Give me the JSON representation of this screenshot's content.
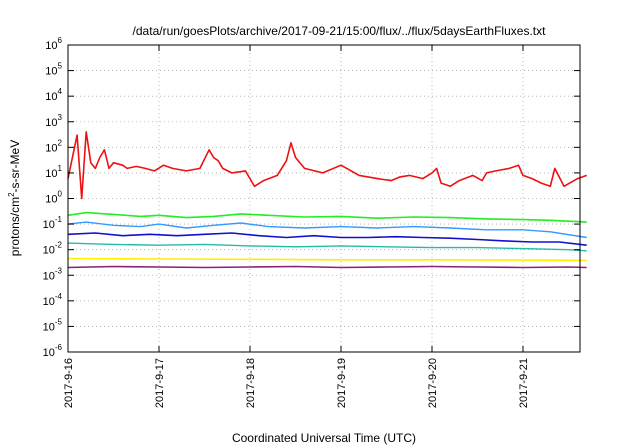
{
  "chart_data": {
    "type": "line",
    "title": "/data/run/goesPlots/archive/2017-09-21/15:00/flux/../flux/5daysEarthFluxes.txt",
    "xlabel": "Coordinated Universal Time (UTC)",
    "ylabel": {
      "base": "protons/cm",
      "sup": "2",
      "rest": "-s-sr-MeV"
    },
    "yscale": "log",
    "ylim": [
      1e-06,
      1000000.0
    ],
    "xlim": [
      "2017-09-16",
      "2017-09-21 17:00"
    ],
    "grid": true,
    "legend": "none",
    "x_ticks": [
      {
        "label": "2017-9-16",
        "day": 0
      },
      {
        "label": "2017-9-17",
        "day": 1
      },
      {
        "label": "2017-9-18",
        "day": 2
      },
      {
        "label": "2017-9-19",
        "day": 3
      },
      {
        "label": "2017-9-20",
        "day": 4
      },
      {
        "label": "2017-9-21",
        "day": 5
      }
    ],
    "y_ticks": [
      {
        "base": "10",
        "exp": "-6",
        "value": 1e-06
      },
      {
        "base": "10",
        "exp": "-5",
        "value": 1e-05
      },
      {
        "base": "10",
        "exp": "-4",
        "value": 0.0001
      },
      {
        "base": "10",
        "exp": "-3",
        "value": 0.001
      },
      {
        "base": "10",
        "exp": "-2",
        "value": 0.01
      },
      {
        "base": "10",
        "exp": "-1",
        "value": 0.1
      },
      {
        "base": "10",
        "exp": "0",
        "value": 1
      },
      {
        "base": "10",
        "exp": "1",
        "value": 10
      },
      {
        "base": "10",
        "exp": "2",
        "value": 100
      },
      {
        "base": "10",
        "exp": "3",
        "value": 1000
      },
      {
        "base": "10",
        "exp": "4",
        "value": 10000
      },
      {
        "base": "10",
        "exp": "5",
        "value": 100000
      },
      {
        "base": "10",
        "exp": "6",
        "value": 1000000
      }
    ],
    "series": [
      {
        "color": "#ee1111",
        "width": 1.6,
        "x": [
          0,
          0.1,
          0.15,
          0.2,
          0.25,
          0.3,
          0.35,
          0.4,
          0.45,
          0.5,
          0.6,
          0.65,
          0.75,
          0.85,
          0.95,
          1.05,
          1.15,
          1.3,
          1.45,
          1.55,
          1.6,
          1.65,
          1.7,
          1.8,
          1.95,
          2.05,
          2.15,
          2.3,
          2.4,
          2.45,
          2.5,
          2.6,
          2.8,
          3.0,
          3.2,
          3.4,
          3.55,
          3.65,
          3.75,
          3.9,
          4.0,
          4.05,
          4.1,
          4.2,
          4.3,
          4.45,
          4.55,
          4.6,
          4.7,
          4.85,
          4.95,
          5.0,
          5.1,
          5.2,
          5.3,
          5.35,
          5.45,
          5.6,
          5.7
        ],
        "y": [
          6,
          300,
          1,
          400,
          25,
          15,
          40,
          80,
          15,
          25,
          20,
          15,
          18,
          15,
          12,
          20,
          15,
          12,
          15,
          80,
          40,
          30,
          15,
          10,
          12,
          3,
          5,
          8,
          30,
          150,
          40,
          15,
          10,
          20,
          8,
          6,
          5,
          7,
          8,
          6,
          10,
          15,
          4,
          3,
          5,
          8,
          5,
          10,
          12,
          15,
          20,
          8,
          6,
          4,
          3,
          15,
          3,
          6,
          8
        ]
      },
      {
        "color": "#22ee22",
        "width": 1.6,
        "x": [
          0,
          0.2,
          0.5,
          0.8,
          1.0,
          1.3,
          1.6,
          1.9,
          2.2,
          2.6,
          3.0,
          3.4,
          3.8,
          4.2,
          4.6,
          5.0,
          5.3,
          5.7
        ],
        "y": [
          0.22,
          0.28,
          0.24,
          0.2,
          0.22,
          0.18,
          0.2,
          0.25,
          0.22,
          0.19,
          0.2,
          0.17,
          0.19,
          0.18,
          0.16,
          0.15,
          0.14,
          0.12
        ]
      },
      {
        "color": "#3399ff",
        "width": 1.4,
        "x": [
          0,
          0.2,
          0.5,
          0.8,
          1.0,
          1.3,
          1.6,
          1.9,
          2.2,
          2.6,
          3.0,
          3.4,
          3.8,
          4.2,
          4.6,
          5.0,
          5.3,
          5.7
        ],
        "y": [
          0.1,
          0.12,
          0.09,
          0.08,
          0.1,
          0.07,
          0.09,
          0.11,
          0.08,
          0.07,
          0.08,
          0.07,
          0.08,
          0.07,
          0.06,
          0.06,
          0.05,
          0.03
        ]
      },
      {
        "color": "#1111cc",
        "width": 1.6,
        "x": [
          0,
          0.3,
          0.6,
          0.9,
          1.2,
          1.5,
          1.8,
          2.1,
          2.4,
          2.7,
          3.0,
          3.3,
          3.6,
          3.9,
          4.2,
          4.5,
          4.8,
          5.1,
          5.4,
          5.7
        ],
        "y": [
          0.04,
          0.045,
          0.035,
          0.04,
          0.035,
          0.04,
          0.045,
          0.035,
          0.03,
          0.035,
          0.03,
          0.03,
          0.032,
          0.03,
          0.028,
          0.025,
          0.022,
          0.02,
          0.02,
          0.015
        ]
      },
      {
        "color": "#22bbaa",
        "width": 1.4,
        "x": [
          0,
          0.5,
          1.0,
          1.5,
          2.0,
          2.5,
          3.0,
          3.5,
          4.0,
          4.5,
          5.0,
          5.5,
          5.7
        ],
        "y": [
          0.018,
          0.016,
          0.015,
          0.016,
          0.014,
          0.013,
          0.014,
          0.013,
          0.012,
          0.012,
          0.011,
          0.01,
          0.009
        ]
      },
      {
        "color": "#ffee00",
        "width": 1.6,
        "x": [
          0,
          1,
          2,
          3,
          4,
          5,
          5.7
        ],
        "y": [
          0.0045,
          0.0043,
          0.0042,
          0.004,
          0.004,
          0.0039,
          0.0038
        ]
      },
      {
        "color": "#882277",
        "width": 1.6,
        "x": [
          0,
          0.5,
          1.0,
          1.5,
          2.0,
          2.5,
          3.0,
          3.5,
          4.0,
          4.5,
          5.0,
          5.5,
          5.7
        ],
        "y": [
          0.002,
          0.0022,
          0.0021,
          0.002,
          0.0021,
          0.0022,
          0.002,
          0.0021,
          0.0022,
          0.0021,
          0.002,
          0.0021,
          0.002
        ]
      }
    ]
  }
}
